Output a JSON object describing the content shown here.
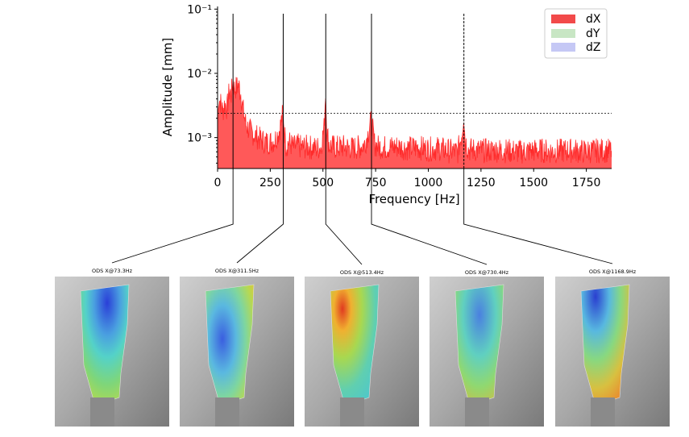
{
  "chart_data": {
    "type": "area",
    "xlabel": "Frequency [Hz]",
    "ylabel": "Amplitude [mm]",
    "xlim": [
      0,
      1870
    ],
    "ylim": [
      0.00033,
      0.11
    ],
    "yscale": "log",
    "x_ticks": [
      0,
      250,
      500,
      750,
      1000,
      1250,
      1500,
      1750
    ],
    "x_tick_labels": [
      "0",
      "250",
      "500",
      "750",
      "1000",
      "1250",
      "1500",
      "1750"
    ],
    "y_ticks": [
      0.001,
      0.01,
      0.1
    ],
    "y_tick_labels": [
      "10⁻³",
      "10⁻²",
      "10⁻¹"
    ],
    "threshold": 0.0024,
    "legend": {
      "position": "top-right",
      "entries": [
        {
          "name": "dX",
          "color": "#f24a4a"
        },
        {
          "name": "dY",
          "color": "#c8e6c4"
        },
        {
          "name": "dZ",
          "color": "#c5c8f5"
        }
      ]
    },
    "peaks_hz": [
      73.3,
      311.5,
      513.4,
      730.4,
      1168.9
    ],
    "series": [
      {
        "name": "dX",
        "color": "#ff2a2a",
        "x": [
          0,
          5,
          15,
          25,
          35,
          45,
          55,
          65,
          73,
          80,
          90,
          100,
          110,
          120,
          135,
          150,
          175,
          200,
          225,
          250,
          270,
          290,
          300,
          305,
          311,
          318,
          325,
          340,
          360,
          380,
          400,
          430,
          460,
          490,
          505,
          510,
          513,
          516,
          520,
          530,
          560,
          600,
          640,
          680,
          700,
          715,
          725,
          730,
          735,
          745,
          760,
          800,
          850,
          900,
          950,
          1000,
          1050,
          1100,
          1140,
          1160,
          1168,
          1175,
          1190,
          1230,
          1280,
          1330,
          1380,
          1430,
          1480,
          1530,
          1580,
          1630,
          1680,
          1730,
          1780,
          1830,
          1870
        ],
        "y": [
          0.0015,
          0.0042,
          0.0034,
          0.0026,
          0.0034,
          0.0028,
          0.0052,
          0.0047,
          0.0078,
          0.0058,
          0.006,
          0.0065,
          0.0049,
          0.0028,
          0.0016,
          0.0013,
          0.0011,
          0.00095,
          0.00085,
          0.00085,
          0.0009,
          0.0012,
          0.0016,
          0.002,
          0.0026,
          0.0012,
          0.00075,
          0.00085,
          0.0007,
          0.00075,
          0.0007,
          0.00072,
          0.00068,
          0.0007,
          0.0014,
          0.0034,
          0.0052,
          0.0021,
          0.0012,
          0.00075,
          0.0007,
          0.00072,
          0.00068,
          0.00072,
          0.0008,
          0.0012,
          0.0016,
          0.002,
          0.0014,
          0.0008,
          0.00072,
          0.0007,
          0.00072,
          0.00068,
          0.0007,
          0.00066,
          0.00068,
          0.00062,
          0.0006,
          0.0012,
          0.0023,
          0.0009,
          0.00065,
          0.00064,
          0.00062,
          0.00064,
          0.00062,
          0.0006,
          0.00062,
          0.00063,
          0.00061,
          0.00062,
          0.00063,
          0.00061,
          0.00062,
          0.00063,
          0.00062
        ]
      }
    ]
  },
  "ods_panels": [
    {
      "title": "ODS X@73.3Hz"
    },
    {
      "title": "ODS X@311.5Hz"
    },
    {
      "title": "ODS X@513.4Hz"
    },
    {
      "title": "ODS X@730.4Hz"
    },
    {
      "title": "ODS X@1168.9Hz"
    }
  ]
}
